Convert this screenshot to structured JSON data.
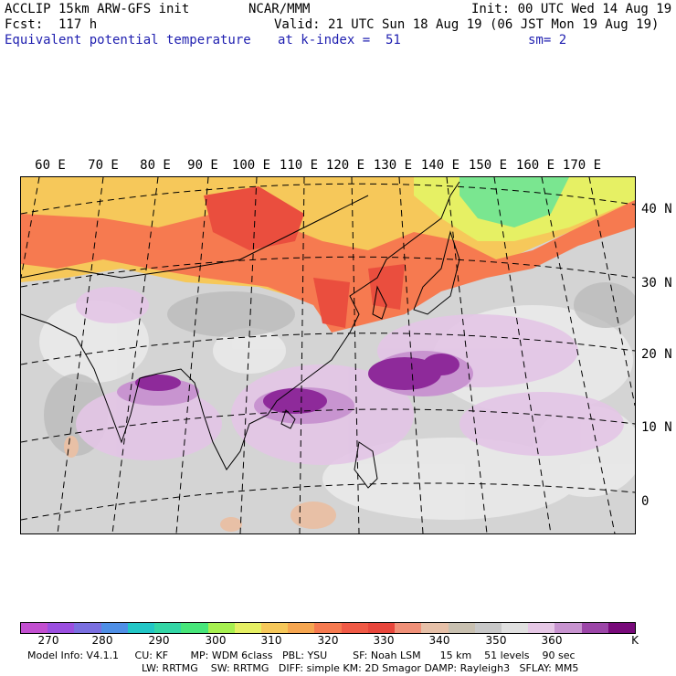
{
  "header": {
    "left_line1": "ACCLIP 15km ARW-GFS init",
    "left_line2": "Fcst:  117 h",
    "variable": "Equivalent potential temperature",
    "center_line1": "NCAR/MMM",
    "init": "Init: 00 UTC Wed 14 Aug 19",
    "valid": "Valid: 21 UTC Sun 18 Aug 19 (06 JST Mon 19 Aug 19)",
    "level": "at k-index =  51",
    "smooth": "sm= 2"
  },
  "map": {
    "lon_labels": [
      "60 E",
      "70 E",
      "80 E",
      "90 E",
      "100 E",
      "110 E",
      "120 E",
      "130 E",
      "140 E",
      "150 E",
      "160 E",
      "170 E"
    ],
    "lat_labels": [
      "40 N",
      "30 N",
      "20 N",
      "10 N",
      "0"
    ]
  },
  "legend": {
    "colors": [
      "#c24fd0",
      "#9b4fe0",
      "#7a6fe0",
      "#4f8fe6",
      "#22c6c6",
      "#33d6a6",
      "#47e67a",
      "#a6f050",
      "#e6f064",
      "#f6c85a",
      "#f6a650",
      "#f67a50",
      "#f05a46",
      "#e8463c",
      "#f09078",
      "#e6c0a8",
      "#c8c0b0",
      "#c8c8c8",
      "#e0e0e0",
      "#e6c8e6",
      "#c894d0",
      "#9c46a8",
      "#780a7a"
    ],
    "ticks": [
      "270",
      "280",
      "290",
      "300",
      "310",
      "320",
      "330",
      "340",
      "350",
      "360",
      "K"
    ],
    "unit": "K"
  },
  "footer": {
    "line1": "Model Info: V4.1.1     CU: KF       MP: WDM 6class   PBL: YSU        SF: Noah LSM      15 km    51 levels    90 sec",
    "line2": "LW: RRTMG    SW: RRTMG   DIFF: simple KM: 2D Smagor DAMP: Rayleigh3   SFLAY: MM5"
  }
}
